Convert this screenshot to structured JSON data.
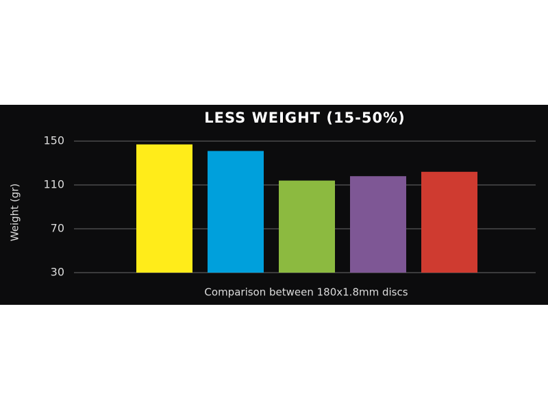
{
  "chart_data": {
    "type": "bar",
    "title": "LESS WEIGHT (15-50%)",
    "y_label": "Weight (gr)",
    "x_label": "Comparison between 180x1.8mm discs",
    "categories": [
      null,
      null,
      null,
      null,
      null
    ],
    "values": [
      147,
      141,
      114,
      118,
      122
    ],
    "colors": [
      "#ffec1a",
      "#00a0dc",
      "#8cba40",
      "#7e5795",
      "#cf3b30"
    ],
    "ylim": [
      30,
      150
    ],
    "yticks": [
      30,
      70,
      110,
      150
    ],
    "grid": true
  }
}
